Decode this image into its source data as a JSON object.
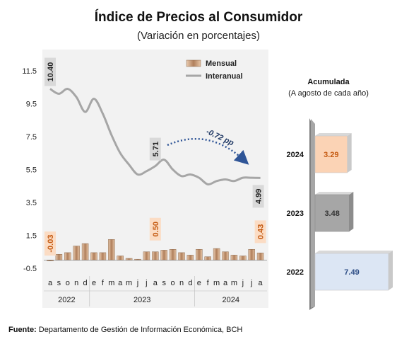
{
  "chart_data": [
    {
      "type": "line",
      "title": "Índice de Precios al Consumidor",
      "subtitle": "(Variación en porcentajes)",
      "ylim": [
        -0.5,
        11.5
      ],
      "yticks": [
        "-0.5",
        "1.5",
        "3.5",
        "5.5",
        "7.5",
        "9.5",
        "11.5"
      ],
      "yticks_values": [
        -0.5,
        1.5,
        3.5,
        5.5,
        7.5,
        9.5,
        11.5
      ],
      "x": [
        "a",
        "s",
        "o",
        "n",
        "d",
        "e",
        "f",
        "m",
        "a",
        "m",
        "j",
        "j",
        "a",
        "s",
        "o",
        "n",
        "d",
        "e",
        "f",
        "m",
        "a",
        "m",
        "j",
        "j",
        "a"
      ],
      "years": [
        {
          "label": "2022",
          "start": 0,
          "end": 4
        },
        {
          "label": "2023",
          "start": 5,
          "end": 16
        },
        {
          "label": "2024",
          "start": 17,
          "end": 24
        }
      ],
      "legend": [
        "Mensual",
        "Interanual"
      ],
      "legend_position": "top-right",
      "grid": false,
      "series": [
        {
          "name": "Mensual",
          "type": "bar",
          "color": "#c9a080",
          "values": [
            -0.03,
            0.35,
            0.45,
            0.85,
            1.0,
            0.45,
            0.45,
            1.25,
            0.25,
            0.1,
            0.05,
            0.5,
            0.5,
            0.6,
            0.65,
            0.45,
            0.3,
            0.65,
            0.2,
            0.7,
            0.5,
            0.3,
            0.25,
            0.65,
            0.43
          ]
        },
        {
          "name": "Interanual",
          "type": "line",
          "color": "#a6a6a6",
          "values": [
            10.4,
            10.1,
            10.4,
            9.9,
            9.0,
            9.8,
            8.9,
            7.6,
            6.5,
            5.8,
            5.2,
            5.4,
            5.71,
            6.1,
            5.5,
            5.1,
            5.2,
            5.0,
            4.6,
            4.8,
            4.9,
            4.8,
            5.0,
            5.0,
            4.99
          ]
        }
      ],
      "labels": [
        {
          "series": "Interanual",
          "index": 0,
          "text": "10.40"
        },
        {
          "series": "Interanual",
          "index": 12,
          "text": "5.71"
        },
        {
          "series": "Interanual",
          "index": 24,
          "text": "4.99"
        },
        {
          "series": "Mensual",
          "index": 0,
          "text": "-0.03"
        },
        {
          "series": "Mensual",
          "index": 12,
          "text": "0.50"
        },
        {
          "series": "Mensual",
          "index": 24,
          "text": "0.43"
        }
      ],
      "annotation": "-0.72 pp"
    },
    {
      "type": "bar",
      "orientation": "horizontal",
      "title": "Acumulada",
      "subtitle": "(A agosto de cada año)",
      "categories": [
        "2024",
        "2023",
        "2022"
      ],
      "values": [
        3.29,
        3.48,
        7.49
      ],
      "labels": [
        "3.29",
        "3.48",
        "7.49"
      ],
      "colors": [
        "#fbd3b5",
        "#a6a6a6",
        "#dce6f4"
      ],
      "label_colors": [
        "#c55a11",
        "#333333",
        "#2f4f86"
      ]
    }
  ],
  "footnote": {
    "bold": "Fuente:",
    "text": " Departamento de Gestión de Información Económica, BCH"
  }
}
